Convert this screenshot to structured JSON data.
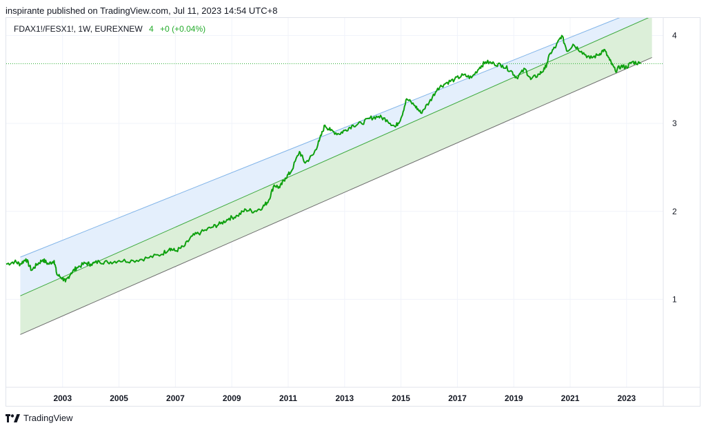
{
  "header": {
    "published_line": "inspirante published on TradingView.com, Jul 11, 2023 14:54 UTC+8"
  },
  "legend": {
    "symbol": "FDAX1!/FESX1!, 1W, EUREXNEW",
    "last_value": "4",
    "change": "+0 (+0.04%)"
  },
  "footer": {
    "brand": "TradingView"
  },
  "colors": {
    "price_line": "#0ea00e",
    "upper_fill": "#e4effc",
    "lower_fill": "#dcefd9",
    "upper_line": "#7fb3e8",
    "middle_line": "#3aa83a",
    "lower_line": "#6b6b6b",
    "grid": "#f0f3fa",
    "dotted_last": "#22ab2a"
  },
  "chart_data": {
    "type": "line",
    "title": "FDAX1!/FESX1!, 1W, EUREXNEW",
    "xlabel": "",
    "ylabel": "",
    "x_ticks": [
      "2003",
      "2005",
      "2007",
      "2009",
      "2011",
      "2013",
      "2015",
      "2017",
      "2019",
      "2021",
      "2023"
    ],
    "y_ticks": [
      1,
      2,
      3,
      4
    ],
    "ylim": [
      0.0,
      4.2
    ],
    "xlim": [
      2001.0,
      2024.3
    ],
    "grid": true,
    "last_value": 3.68,
    "series": [
      {
        "values": [
          [
            2001.0,
            1.4
          ],
          [
            2001.3,
            1.43
          ],
          [
            2001.5,
            1.4
          ],
          [
            2001.7,
            1.46
          ],
          [
            2001.9,
            1.33
          ],
          [
            2002.1,
            1.4
          ],
          [
            2002.3,
            1.45
          ],
          [
            2002.5,
            1.4
          ],
          [
            2002.7,
            1.44
          ],
          [
            2002.8,
            1.28
          ],
          [
            2003.0,
            1.24
          ],
          [
            2003.1,
            1.2
          ],
          [
            2003.3,
            1.3
          ],
          [
            2003.5,
            1.36
          ],
          [
            2003.8,
            1.41
          ],
          [
            2004.0,
            1.4
          ],
          [
            2004.3,
            1.43
          ],
          [
            2004.6,
            1.42
          ],
          [
            2005.0,
            1.44
          ],
          [
            2005.5,
            1.44
          ],
          [
            2006.0,
            1.47
          ],
          [
            2006.5,
            1.51
          ],
          [
            2006.8,
            1.58
          ],
          [
            2007.0,
            1.55
          ],
          [
            2007.3,
            1.6
          ],
          [
            2007.6,
            1.72
          ],
          [
            2007.9,
            1.76
          ],
          [
            2008.3,
            1.82
          ],
          [
            2008.6,
            1.86
          ],
          [
            2008.9,
            1.92
          ],
          [
            2009.2,
            1.95
          ],
          [
            2009.5,
            2.02
          ],
          [
            2009.8,
            2.0
          ],
          [
            2010.1,
            2.05
          ],
          [
            2010.3,
            2.12
          ],
          [
            2010.5,
            2.3
          ],
          [
            2010.7,
            2.27
          ],
          [
            2010.9,
            2.38
          ],
          [
            2011.1,
            2.45
          ],
          [
            2011.4,
            2.68
          ],
          [
            2011.6,
            2.55
          ],
          [
            2011.9,
            2.65
          ],
          [
            2012.1,
            2.8
          ],
          [
            2012.3,
            2.98
          ],
          [
            2012.5,
            2.92
          ],
          [
            2012.8,
            2.88
          ],
          [
            2013.0,
            2.92
          ],
          [
            2013.3,
            2.98
          ],
          [
            2013.6,
            3.0
          ],
          [
            2013.9,
            3.06
          ],
          [
            2014.2,
            3.08
          ],
          [
            2014.5,
            3.04
          ],
          [
            2014.8,
            2.96
          ],
          [
            2015.0,
            3.06
          ],
          [
            2015.2,
            3.28
          ],
          [
            2015.5,
            3.2
          ],
          [
            2015.7,
            3.12
          ],
          [
            2016.0,
            3.24
          ],
          [
            2016.3,
            3.4
          ],
          [
            2016.6,
            3.46
          ],
          [
            2016.9,
            3.5
          ],
          [
            2017.2,
            3.55
          ],
          [
            2017.5,
            3.52
          ],
          [
            2017.8,
            3.64
          ],
          [
            2018.0,
            3.7
          ],
          [
            2018.3,
            3.68
          ],
          [
            2018.6,
            3.66
          ],
          [
            2018.9,
            3.6
          ],
          [
            2019.1,
            3.52
          ],
          [
            2019.4,
            3.62
          ],
          [
            2019.6,
            3.5
          ],
          [
            2019.9,
            3.56
          ],
          [
            2020.1,
            3.62
          ],
          [
            2020.3,
            3.8
          ],
          [
            2020.5,
            3.88
          ],
          [
            2020.7,
            4.0
          ],
          [
            2020.9,
            3.82
          ],
          [
            2021.1,
            3.9
          ],
          [
            2021.4,
            3.82
          ],
          [
            2021.7,
            3.74
          ],
          [
            2022.0,
            3.78
          ],
          [
            2022.2,
            3.84
          ],
          [
            2022.4,
            3.72
          ],
          [
            2022.6,
            3.6
          ],
          [
            2022.8,
            3.65
          ],
          [
            2023.0,
            3.64
          ],
          [
            2023.2,
            3.7
          ],
          [
            2023.5,
            3.68
          ]
        ]
      }
    ],
    "channel": {
      "x_start": 2001.5,
      "x_end": 2023.9,
      "upper": [
        1.48,
        4.35
      ],
      "middle": [
        1.04,
        4.22
      ],
      "lower": [
        0.6,
        3.75
      ]
    }
  }
}
